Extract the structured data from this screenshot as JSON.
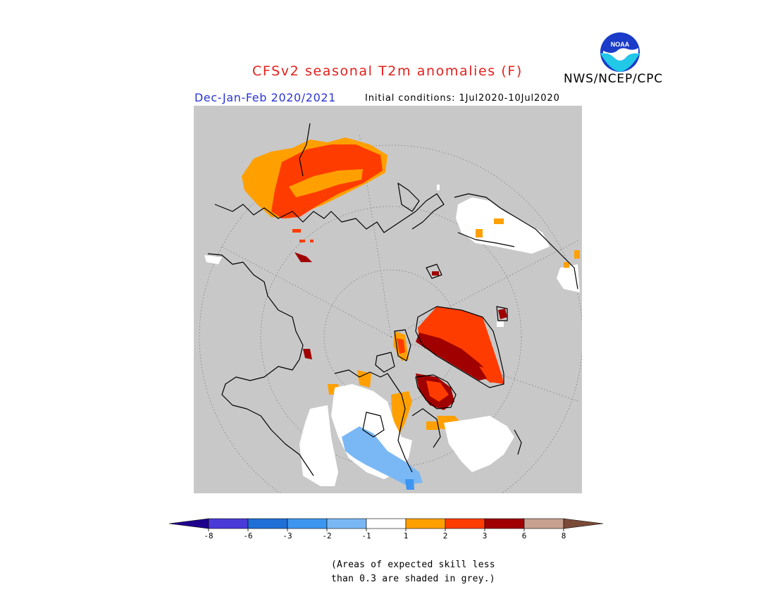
{
  "header": {
    "title": "CFSv2 seasonal T2m anomalies (F)",
    "agency": "NWS/NCEP/CPC",
    "logo_text": "NOAA",
    "season": "Dec-Jan-Feb 2020/2021",
    "initial_conditions": "Initial conditions: 1Jul2020-10Jul2020"
  },
  "map": {
    "projection": "north polar stereographic",
    "background_color": "#c8c8c8",
    "grid": true
  },
  "colorbar": {
    "ticks": [
      "-8",
      "-6",
      "-3",
      "-2",
      "-1",
      "1",
      "2",
      "3",
      "6",
      "8"
    ],
    "colors": [
      "#1e008c",
      "#4a3ad8",
      "#1f6fd6",
      "#3c96f0",
      "#7ab8f5",
      "#ffffff",
      "#ffa000",
      "#ff3c00",
      "#a00000",
      "#c8a090",
      "#7a4a38"
    ]
  },
  "footnote": "(Areas of expected skill less\nthan 0.3 are shaded in grey.)"
}
